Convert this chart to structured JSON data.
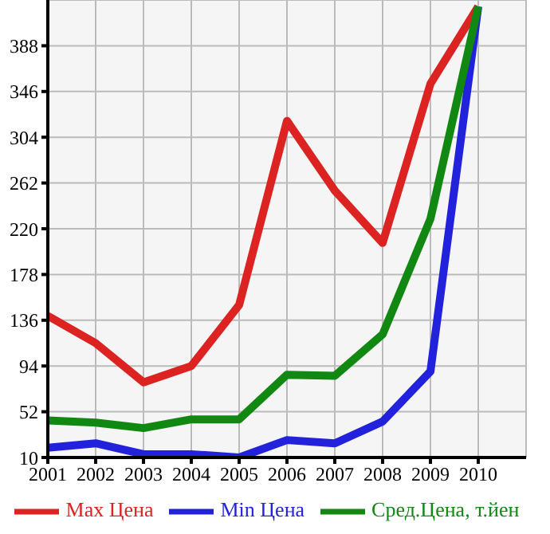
{
  "chart_data": {
    "type": "line",
    "x": [
      2001,
      2002,
      2003,
      2004,
      2005,
      2006,
      2007,
      2008,
      2009,
      2010
    ],
    "series": [
      {
        "name": "Max Цена",
        "color": "#dd2222",
        "values": [
          140,
          115,
          79,
          94,
          150,
          319,
          255,
          207,
          353,
          424
        ]
      },
      {
        "name": "Min Цена",
        "color": "#2222dd",
        "values": [
          19,
          23,
          13,
          13,
          10,
          26,
          23,
          43,
          89,
          424
        ]
      },
      {
        "name": "Сред.Цена, т.йен",
        "color": "#118811",
        "values": [
          44,
          42,
          37,
          45,
          45,
          86,
          85,
          123,
          229,
          424
        ]
      }
    ],
    "xlim": [
      2001,
      2011
    ],
    "xticks": [
      2001,
      2002,
      2003,
      2004,
      2005,
      2006,
      2007,
      2008,
      2009,
      2010
    ],
    "ylim": [
      10,
      430
    ],
    "yticks": [
      10,
      52,
      94,
      136,
      178,
      220,
      262,
      304,
      346,
      388
    ],
    "grid": true,
    "legend": "bottom",
    "marker": "none",
    "line_style": "solid"
  }
}
